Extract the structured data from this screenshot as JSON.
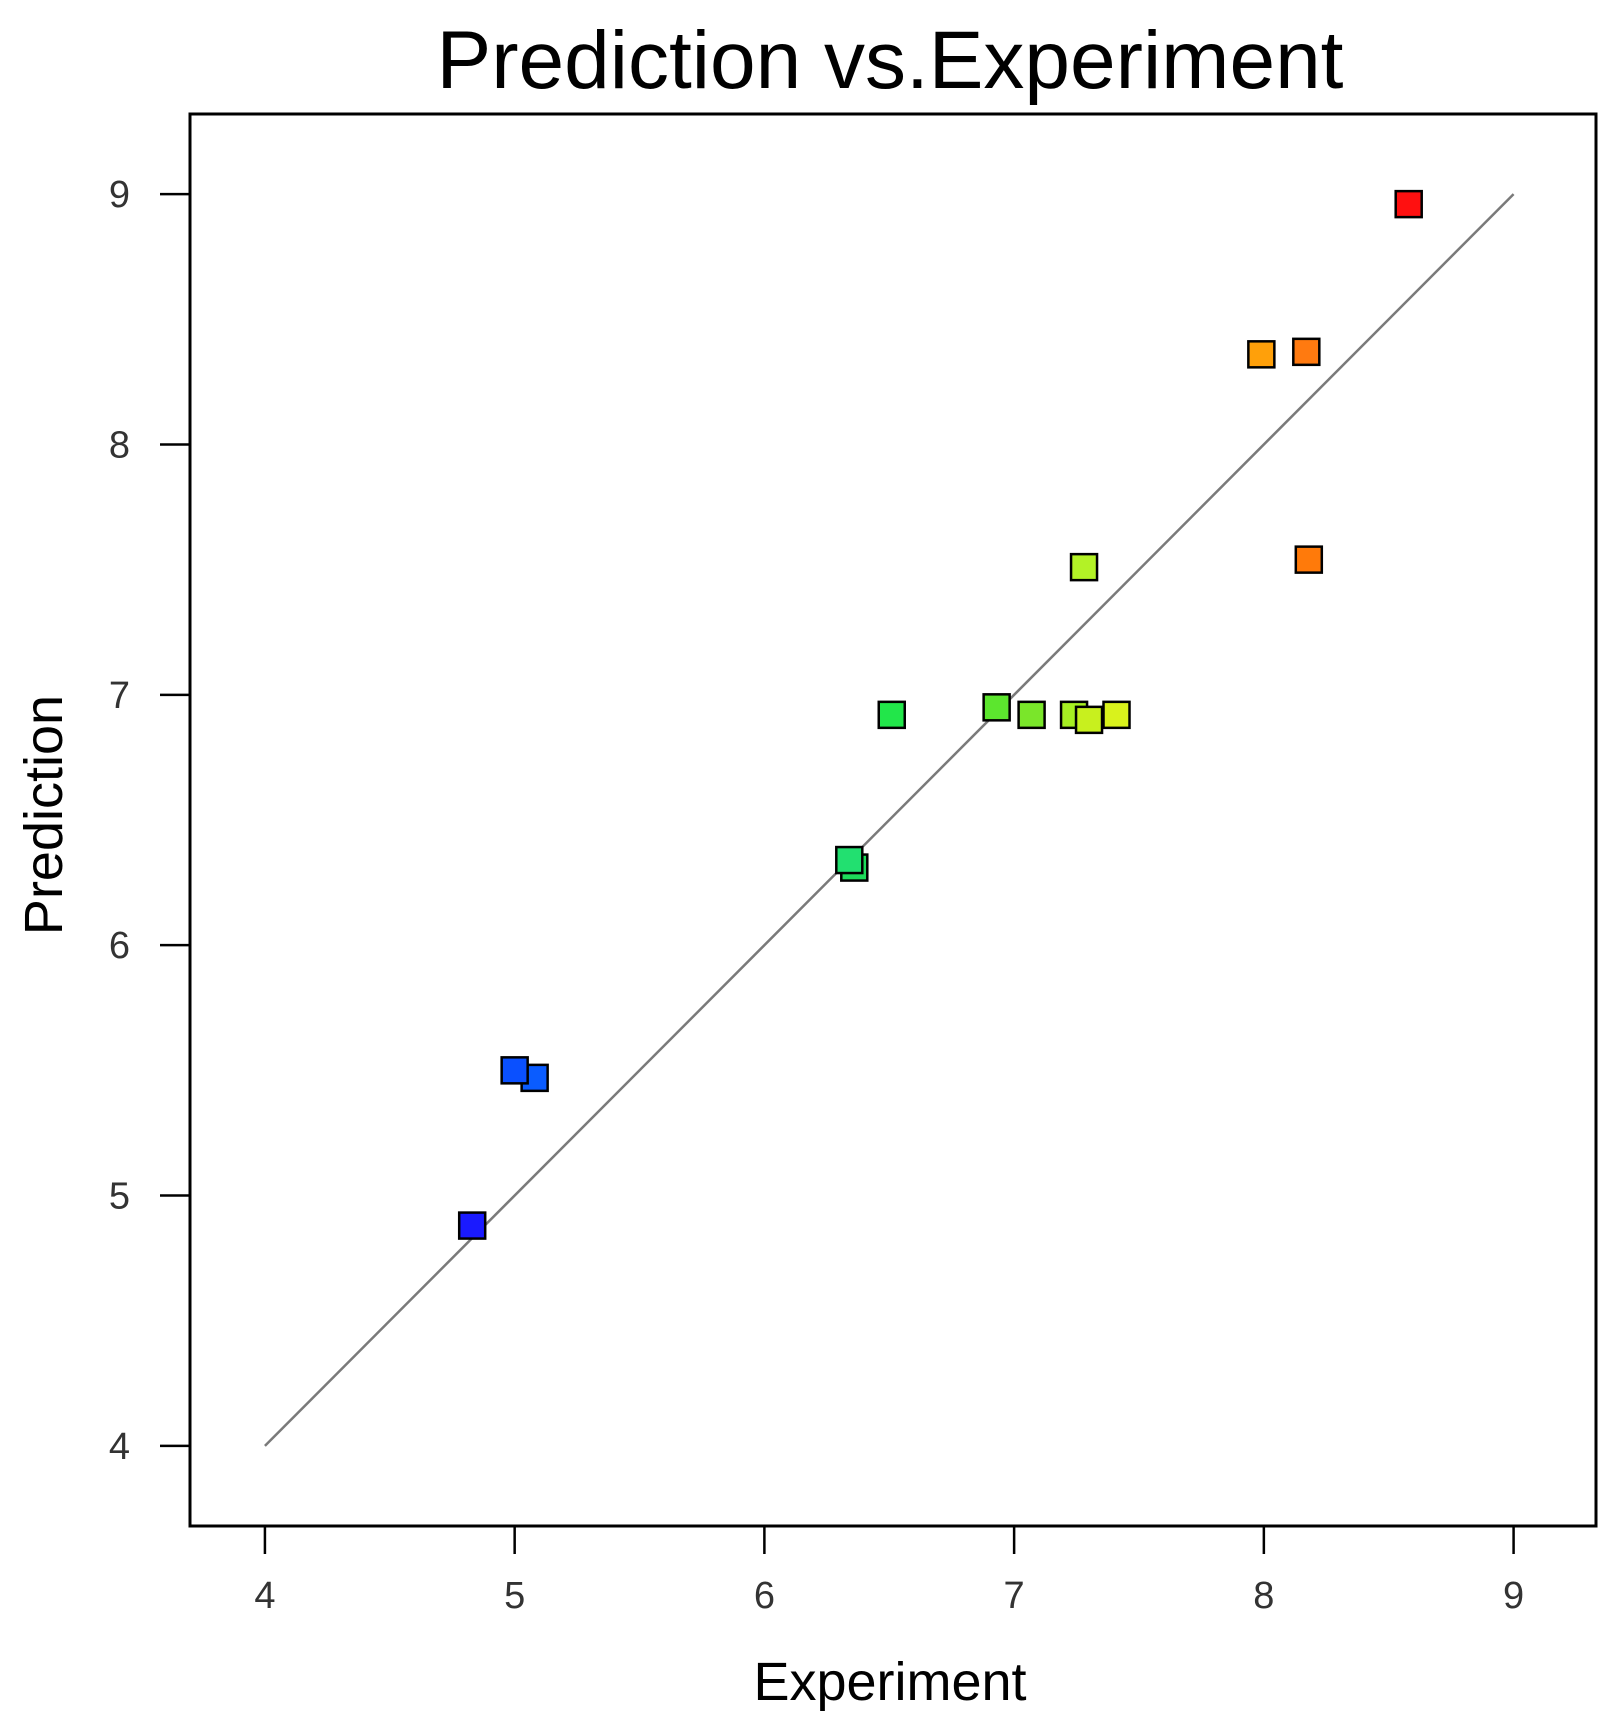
{
  "chart_data": {
    "type": "scatter",
    "title": "Prediction vs.Experiment",
    "xlabel": "Experiment",
    "ylabel": "Prediction",
    "xlim": [
      3.7,
      9.33
    ],
    "ylim": [
      3.68,
      9.32
    ],
    "x_ticks": [
      "4",
      "5",
      "6",
      "7",
      "8",
      "9"
    ],
    "y_ticks": [
      "4",
      "5",
      "6",
      "7",
      "8",
      "9"
    ],
    "grid": false,
    "reference_line": {
      "from": [
        4,
        4
      ],
      "to": [
        9,
        9
      ],
      "color": "#7a7a7a"
    },
    "points": [
      {
        "x": 4.83,
        "y": 4.88,
        "color": "#1a1aff"
      },
      {
        "x": 5.08,
        "y": 5.47,
        "color": "#0a5cff"
      },
      {
        "x": 5.0,
        "y": 5.5,
        "color": "#0a50ff"
      },
      {
        "x": 6.36,
        "y": 6.31,
        "color": "#1ddc5a"
      },
      {
        "x": 6.34,
        "y": 6.34,
        "color": "#22e070"
      },
      {
        "x": 6.51,
        "y": 6.92,
        "color": "#22e64a"
      },
      {
        "x": 6.93,
        "y": 6.95,
        "color": "#5ce62e"
      },
      {
        "x": 7.07,
        "y": 6.92,
        "color": "#7ae62a"
      },
      {
        "x": 7.24,
        "y": 6.92,
        "color": "#a6ef22"
      },
      {
        "x": 7.3,
        "y": 6.9,
        "color": "#c8f01e"
      },
      {
        "x": 7.41,
        "y": 6.92,
        "color": "#d9f21c"
      },
      {
        "x": 7.28,
        "y": 7.51,
        "color": "#b3f226"
      },
      {
        "x": 8.18,
        "y": 7.54,
        "color": "#ff7a0a"
      },
      {
        "x": 7.99,
        "y": 8.36,
        "color": "#ffa00a"
      },
      {
        "x": 8.17,
        "y": 8.37,
        "color": "#ff7a10"
      },
      {
        "x": 8.58,
        "y": 8.96,
        "color": "#ff1010"
      }
    ]
  }
}
